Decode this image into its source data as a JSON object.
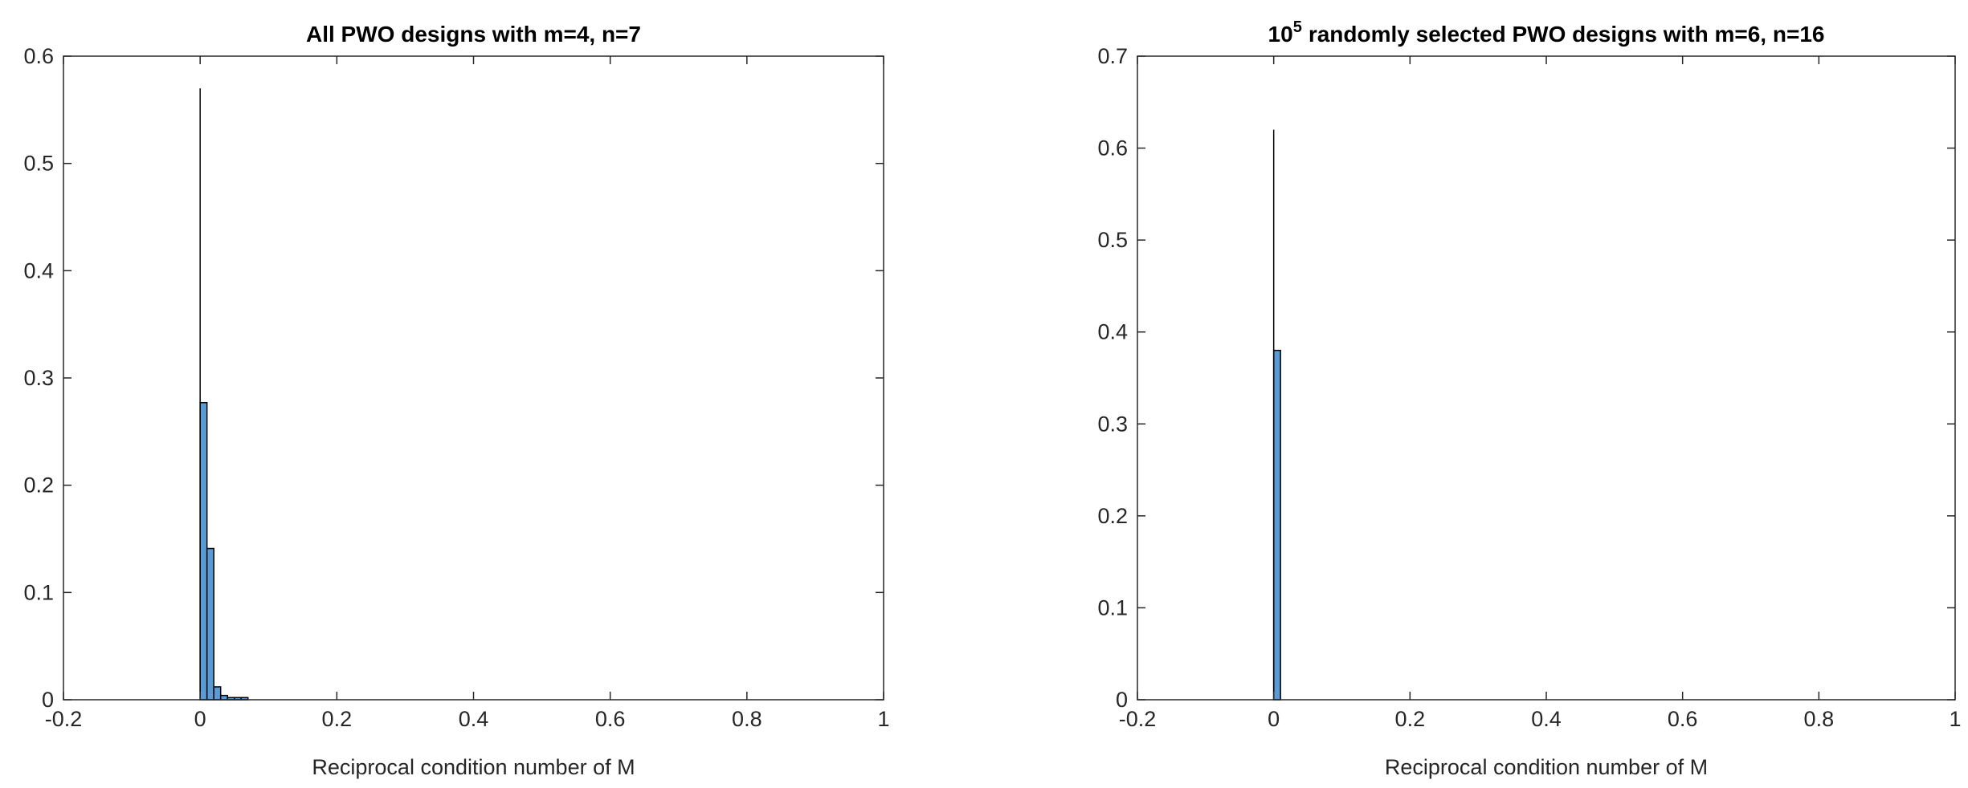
{
  "chart_data": [
    {
      "type": "histogram",
      "title": "All PWO designs with m=4, n=7",
      "x_label": "Reciprocal condition number of M",
      "bins": [
        0,
        0.01,
        0.02,
        0.03,
        0.04,
        0.05,
        0.06,
        0.07
      ],
      "values": [
        0.277,
        0.141,
        0.012,
        0.004,
        0.002,
        0.002,
        0.002
      ],
      "spike": {
        "x": 0,
        "value": 0.57
      },
      "color": "#5b9bd5",
      "xlim": [
        -0.2,
        1
      ],
      "xticks": [
        -0.2,
        0,
        0.2,
        0.4,
        0.6,
        0.8,
        1
      ],
      "ylim": [
        0,
        0.6
      ],
      "yticks": [
        0,
        0.1,
        0.2,
        0.3,
        0.4,
        0.5,
        0.6
      ]
    },
    {
      "type": "histogram",
      "title": {
        "base": "10",
        "exponent": "5",
        "text": "randomly selected PWO designs with m=6, n=16"
      },
      "x_label": "Reciprocal condition number of M",
      "bins": [
        0,
        0.01
      ],
      "values": [
        0.38
      ],
      "spike": {
        "x": 0,
        "value": 0.62
      },
      "color": "#5b9bd5",
      "xlim": [
        -0.2,
        1
      ],
      "xticks": [
        -0.2,
        0,
        0.2,
        0.4,
        0.6,
        0.8,
        1
      ],
      "ylim": [
        0,
        0.7
      ],
      "yticks": [
        0,
        0.1,
        0.2,
        0.3,
        0.4,
        0.5,
        0.6,
        0.7
      ]
    }
  ]
}
